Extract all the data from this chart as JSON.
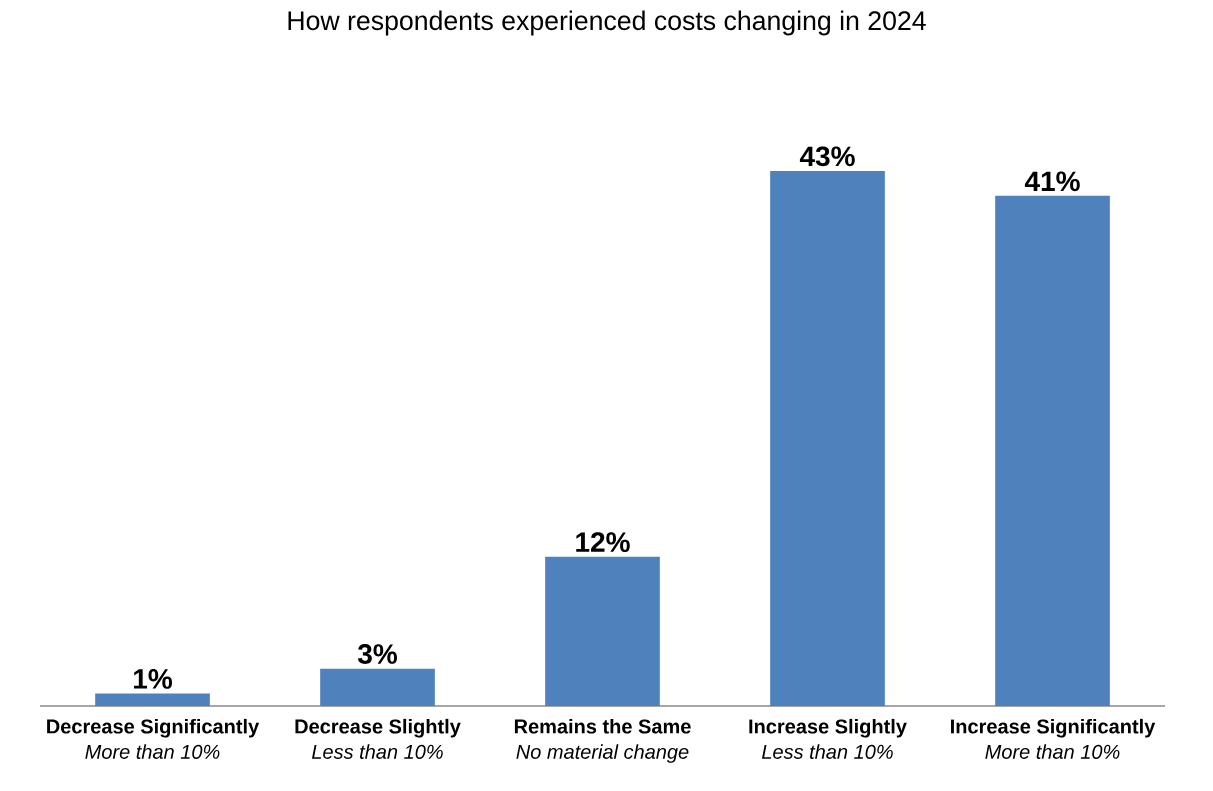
{
  "chart_data": {
    "type": "bar",
    "title": "How respondents experienced costs changing in 2024",
    "categories": [
      "**Decrease Significantly**\n*More than 10%*",
      "**Decrease Slightly**\n*Less than 10%*",
      "**Remains the Same**\n*No material change*",
      "**Increase Slightly**\n*Less than 10%*",
      "**Increase Significantly**\n*More than 10%*"
    ],
    "values": [
      1,
      3,
      12,
      43,
      41
    ],
    "value_labels": [
      "1%",
      "3%",
      "12%",
      "43%",
      "41%"
    ],
    "color": "#4f81bd"
  }
}
